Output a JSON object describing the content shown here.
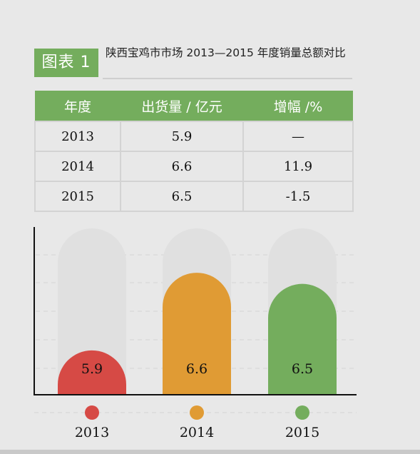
{
  "figure": {
    "badge": "图表 1",
    "title": "陕西宝鸡市市场 2013—2015 年度销量总额对比"
  },
  "table": {
    "headers": [
      "年度",
      "出货量 / 亿元",
      "增幅 /%"
    ],
    "rows": [
      [
        "2013",
        "5.9",
        "—"
      ],
      [
        "2014",
        "6.6",
        "11.9"
      ],
      [
        "2015",
        "6.5",
        "-1.5"
      ]
    ]
  },
  "colors": {
    "accent": "#74ad5d",
    "track": "#e0e0e0",
    "axis": "#111111"
  },
  "chart_data": {
    "type": "bar",
    "categories": [
      "2013",
      "2014",
      "2015"
    ],
    "values": [
      5.9,
      6.6,
      6.5
    ],
    "bar_colors": [
      "#d64a45",
      "#e09b34",
      "#74ad5d"
    ],
    "data_labels": [
      "5.9",
      "6.6",
      "6.5"
    ],
    "ylim": [
      5.5,
      7.0
    ],
    "xlabel": "",
    "ylabel": "",
    "grid": true,
    "legend": "bottom",
    "style": "rounded-top bars with full-height background track, colored dot markers above year labels"
  }
}
